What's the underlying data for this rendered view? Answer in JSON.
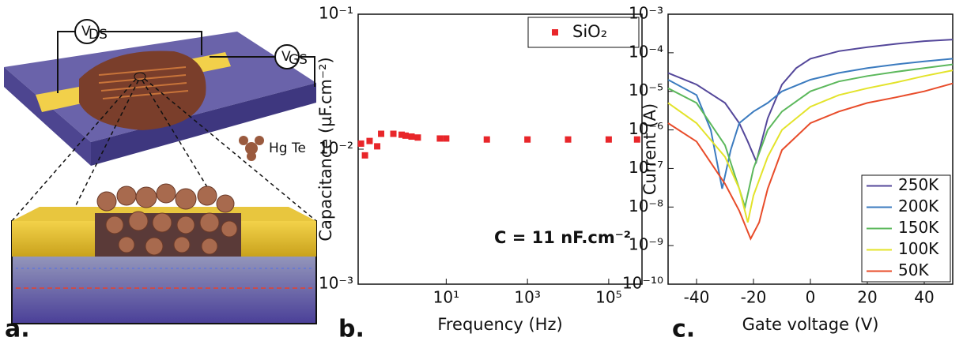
{
  "figure": {
    "panel_labels": [
      "a.",
      "b.",
      "c."
    ],
    "illustration": {
      "ds_probe": {
        "symbol": "V",
        "subscript": "DS"
      },
      "gs_probe": {
        "symbol": "V",
        "subscript": "GS"
      },
      "material": "Hg Te"
    }
  },
  "chart_data": [
    {
      "type": "scatter",
      "xlabel": "Frequency (Hz)",
      "ylabel": "Capacitance (µF.cm⁻²)",
      "annotation": "C = 11 nF.cm⁻²",
      "xlog": true,
      "ylog": true,
      "xlim": [
        0.068,
        660000
      ],
      "ylim": [
        0.001,
        0.1
      ],
      "xticks": [
        {
          "value": 10,
          "label": "10¹"
        },
        {
          "value": 1000,
          "label": "10³"
        },
        {
          "value": 100000,
          "label": "10⁵"
        }
      ],
      "yticks": [
        {
          "value": 0.001,
          "label": "10⁻³"
        },
        {
          "value": 0.01,
          "label": "10⁻²"
        },
        {
          "value": 0.1,
          "label": "10⁻¹"
        }
      ],
      "legend": "top-right",
      "series": [
        {
          "name": "SiO₂",
          "color": "#e8262a",
          "x": [
            0.08,
            0.1,
            0.13,
            0.2,
            0.25,
            0.5,
            0.8,
            1,
            1.4,
            2,
            7,
            10,
            100,
            1000,
            10000,
            100000,
            500000
          ],
          "values": [
            0.011,
            0.009,
            0.0115,
            0.0105,
            0.013,
            0.013,
            0.0128,
            0.0126,
            0.0124,
            0.0122,
            0.012,
            0.012,
            0.0118,
            0.0118,
            0.0118,
            0.0118,
            0.0118
          ]
        }
      ]
    },
    {
      "type": "line",
      "xlabel": "Gate voltage (V)",
      "ylabel": "Current (A)",
      "xlog": false,
      "ylog": true,
      "xlim": [
        -50,
        50
      ],
      "ylim": [
        1e-10,
        0.001
      ],
      "xticks": [
        -40,
        -20,
        0,
        20,
        40
      ],
      "yticks": [
        {
          "value": 1e-10,
          "label": "10⁻¹⁰"
        },
        {
          "value": 1e-09,
          "label": "10⁻⁹"
        },
        {
          "value": 1e-08,
          "label": "10⁻⁸"
        },
        {
          "value": 1e-07,
          "label": "10⁻⁷"
        },
        {
          "value": 1e-06,
          "label": "10⁻⁶"
        },
        {
          "value": 1e-05,
          "label": "10⁻⁵"
        },
        {
          "value": 0.0001,
          "label": "10⁻⁴"
        },
        {
          "value": 0.001,
          "label": "10⁻³"
        }
      ],
      "legend": "bottom-right",
      "series": [
        {
          "name": "250K",
          "color": "#54479a",
          "x": [
            -50,
            -40,
            -30,
            -25,
            -22,
            -19,
            -15,
            -10,
            -5,
            0,
            10,
            20,
            30,
            40,
            50
          ],
          "values": [
            3e-05,
            1.5e-05,
            5e-06,
            1.5e-06,
            5e-07,
            1.5e-07,
            2e-06,
            1.5e-05,
            4e-05,
            7e-05,
            0.00011,
            0.00014,
            0.00017,
            0.0002,
            0.00022
          ]
        },
        {
          "name": "200K",
          "color": "#3b7bbf",
          "x": [
            -50,
            -40,
            -35,
            -31,
            -28,
            -25,
            -20,
            -15,
            -10,
            0,
            10,
            20,
            30,
            40,
            50
          ],
          "values": [
            2e-05,
            8e-06,
            1e-06,
            3e-08,
            3e-07,
            1.5e-06,
            3e-06,
            5e-06,
            1e-05,
            2e-05,
            3e-05,
            4e-05,
            5e-05,
            6e-05,
            7e-05
          ]
        },
        {
          "name": "150K",
          "color": "#5cb85c",
          "x": [
            -50,
            -40,
            -30,
            -25,
            -23,
            -20,
            -15,
            -10,
            0,
            10,
            20,
            30,
            40,
            50
          ],
          "values": [
            1.2e-05,
            5e-06,
            4e-07,
            3e-08,
            1e-08,
            1e-07,
            1e-06,
            3e-06,
            1e-05,
            1.8e-05,
            2.5e-05,
            3.2e-05,
            4e-05,
            5e-05
          ]
        },
        {
          "name": "100K",
          "color": "#e3e32a",
          "x": [
            -50,
            -40,
            -30,
            -25,
            -22,
            -20,
            -15,
            -10,
            0,
            10,
            20,
            30,
            40,
            50
          ],
          "values": [
            5e-06,
            1.5e-06,
            2e-07,
            3e-08,
            4e-09,
            2e-08,
            2e-07,
            1e-06,
            4e-06,
            8e-06,
            1.2e-05,
            1.7e-05,
            2.5e-05,
            3.5e-05
          ]
        },
        {
          "name": "50K",
          "color": "#e84c2a",
          "x": [
            -50,
            -40,
            -30,
            -25,
            -21,
            -18,
            -15,
            -10,
            0,
            10,
            20,
            30,
            40,
            50
          ],
          "values": [
            1.5e-06,
            5e-07,
            4e-08,
            8e-09,
            1.5e-09,
            4e-09,
            3e-08,
            3e-07,
            1.5e-06,
            3e-06,
            5e-06,
            7e-06,
            1e-05,
            1.6e-05
          ]
        }
      ]
    }
  ]
}
